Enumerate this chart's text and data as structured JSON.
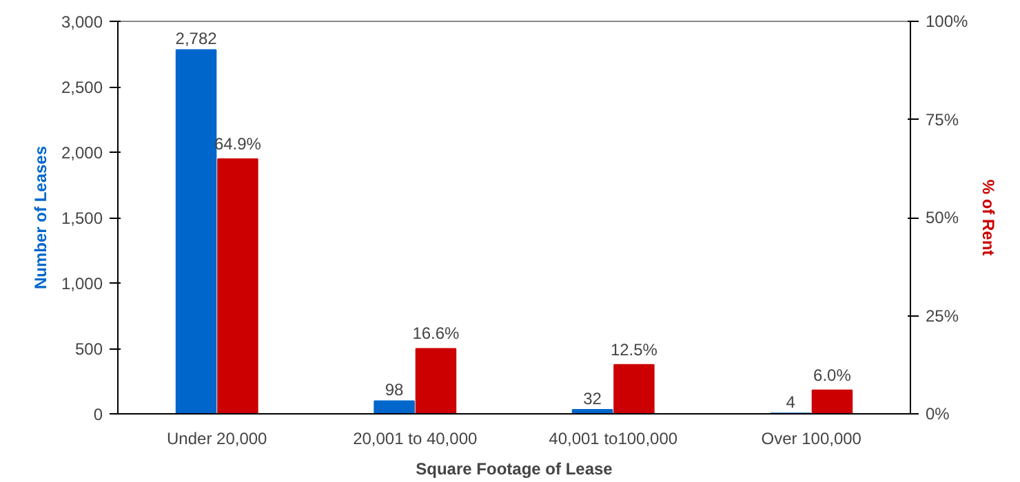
{
  "chart_data": {
    "type": "bar",
    "xlabel": "Square Footage of Lease",
    "categories": [
      "Under 20,000",
      "20,001 to 40,000",
      "40,001 to100,000",
      "Over 100,000"
    ],
    "series": [
      {
        "name": "Number of Leases",
        "color": "#0066cc",
        "values": [
          2782,
          98,
          32,
          4
        ],
        "value_labels": [
          "2,782",
          "98",
          "32",
          "4"
        ]
      },
      {
        "name": "% of Rent",
        "color": "#cc0000",
        "axis": "y2",
        "values": [
          64.9,
          16.6,
          12.5,
          6.0
        ],
        "value_labels": [
          "64.9%",
          "16.6%",
          "12.5%",
          "6.0%"
        ]
      }
    ],
    "ylim": [
      0,
      3000
    ],
    "yticks": [
      0,
      {
        "value": 500,
        "label": "500"
      },
      {
        "value": 1000,
        "label": "1,000"
      },
      {
        "value": 1500,
        "label": "1,500"
      },
      {
        "value": 2000,
        "label": "2,000"
      },
      {
        "value": 2500,
        "label": "2,500"
      },
      {
        "value": 3000,
        "label": "3,000"
      }
    ],
    "y2lim": [
      0,
      100
    ],
    "y2ticks": [
      {
        "value": 0,
        "label": "0%"
      },
      {
        "value": 25,
        "label": "25%"
      },
      {
        "value": 50,
        "label": "50%"
      },
      {
        "value": 75,
        "label": "75%"
      },
      {
        "value": 100,
        "label": "100%"
      }
    ],
    "grid": false
  }
}
